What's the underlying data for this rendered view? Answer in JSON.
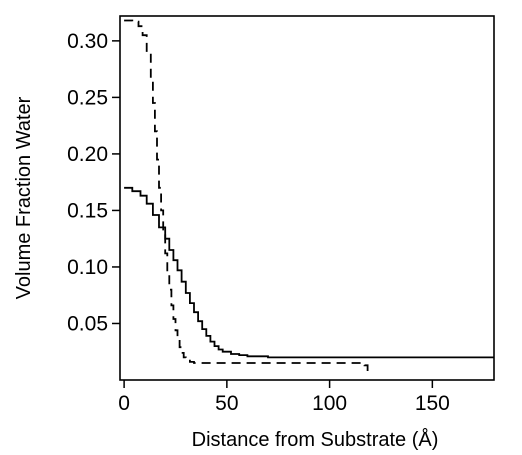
{
  "chart_data": {
    "type": "line",
    "xlabel": "Distance from Substrate (Å)",
    "ylabel": "Volume Fraction Water",
    "xlim": [
      -2,
      180
    ],
    "ylim": [
      0,
      0.322
    ],
    "x_ticks": [
      0,
      50,
      100,
      150
    ],
    "x_tick_labels": [
      "0",
      "50",
      "100",
      "150"
    ],
    "y_ticks": [
      0.05,
      0.1,
      0.15,
      0.2,
      0.25,
      0.3
    ],
    "y_tick_labels": [
      "0.05",
      "0.10",
      "0.15",
      "0.20",
      "0.25",
      "0.30"
    ],
    "grid": false,
    "legend": "none",
    "series": [
      {
        "style": "solid",
        "color": "#000000",
        "x": [
          0,
          4,
          8,
          11,
          14,
          17,
          20,
          22,
          24,
          26,
          28,
          30,
          32,
          34,
          36,
          38,
          40,
          42,
          44,
          46,
          48,
          52,
          56,
          60,
          70,
          90,
          120,
          150,
          180
        ],
        "y": [
          0.17,
          0.167,
          0.163,
          0.156,
          0.146,
          0.135,
          0.125,
          0.115,
          0.106,
          0.097,
          0.087,
          0.077,
          0.068,
          0.06,
          0.052,
          0.045,
          0.039,
          0.034,
          0.03,
          0.027,
          0.025,
          0.023,
          0.022,
          0.021,
          0.02,
          0.02,
          0.02,
          0.02,
          0.02
        ]
      },
      {
        "style": "dashed",
        "color": "#000000",
        "x": [
          0,
          4,
          7,
          9,
          11,
          13,
          14,
          15,
          16,
          17,
          18,
          19,
          20,
          21,
          22,
          23,
          24,
          25,
          26,
          27,
          28,
          29,
          30,
          32,
          34,
          36,
          40,
          50,
          70,
          90,
          110,
          115,
          117,
          118.5
        ],
        "y": [
          0.318,
          0.317,
          0.313,
          0.305,
          0.29,
          0.265,
          0.245,
          0.22,
          0.195,
          0.17,
          0.15,
          0.13,
          0.112,
          0.095,
          0.08,
          0.066,
          0.054,
          0.044,
          0.036,
          0.029,
          0.024,
          0.02,
          0.018,
          0.016,
          0.015,
          0.015,
          0.015,
          0.015,
          0.015,
          0.015,
          0.015,
          0.015,
          0.013,
          0.005
        ]
      }
    ]
  }
}
